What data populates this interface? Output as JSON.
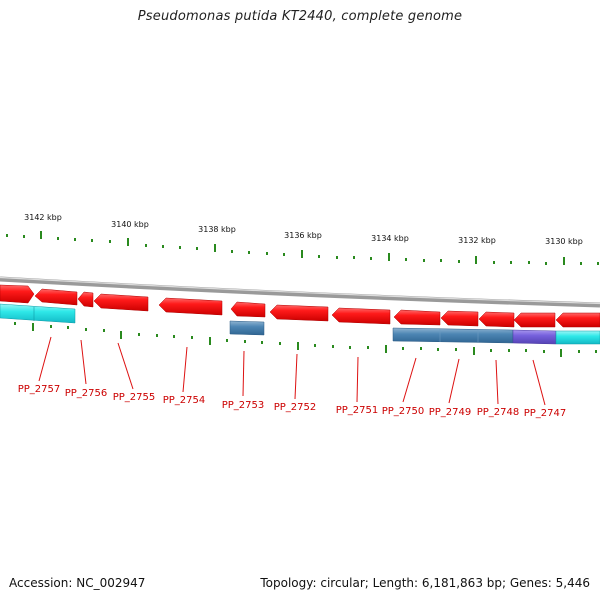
{
  "header": {
    "title": "Pseudomonas putida KT2440, complete genome"
  },
  "footer": {
    "accession": "Accession: NC_002947",
    "summary": "Topology: circular; Length: 6,181,863 bp; Genes: 5,446"
  },
  "scale_labels": [
    "3142 kbp",
    "3140 kbp",
    "3138 kbp",
    "3136 kbp",
    "3134 kbp",
    "3132 kbp",
    "3130 kbp"
  ],
  "gene_labels": [
    "PP_2757",
    "PP_2756",
    "PP_2755",
    "PP_2754",
    "PP_2753",
    "PP_2752",
    "PP_2751",
    "PP_2750",
    "PP_2749",
    "PP_2748",
    "PP_2747"
  ],
  "colors": {
    "backbone": "#8c8c8c",
    "gene_red": "#ee0000",
    "cyan": "#22e4e4",
    "steel_blue": "#3f7fae",
    "purple": "#6d58d4",
    "tick_green": "#2a8a1e",
    "label_red": "#cc0000"
  }
}
